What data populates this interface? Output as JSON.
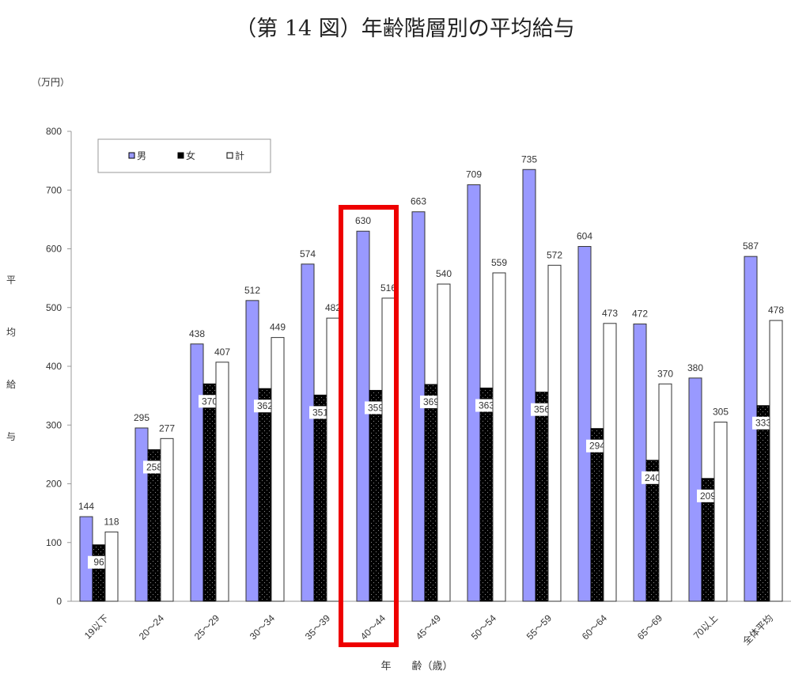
{
  "chart_data": {
    "type": "bar",
    "title": "（第 14 図）年齢階層別の平均給与",
    "unit": "（万円）",
    "ylabel": "平均給与",
    "xlabel": "年　齢（歳）",
    "ylim": [
      0,
      800
    ],
    "yticks": [
      0,
      100,
      200,
      300,
      400,
      500,
      600,
      700,
      800
    ],
    "categories": [
      "19以下",
      "20～24",
      "25～29",
      "30～34",
      "35～39",
      "40～44",
      "45～49",
      "50～54",
      "55～59",
      "60～64",
      "65～69",
      "70以上",
      "全体平均"
    ],
    "series": [
      {
        "name": "男",
        "color": "#9999ff",
        "values": [
          144,
          295,
          438,
          512,
          574,
          630,
          663,
          709,
          735,
          604,
          472,
          380,
          587
        ]
      },
      {
        "name": "女",
        "color": "#000000",
        "values": [
          96,
          258,
          370,
          362,
          351,
          359,
          369,
          363,
          356,
          294,
          240,
          209,
          333
        ]
      },
      {
        "name": "計",
        "color": "#ffffff",
        "values": [
          118,
          277,
          407,
          449,
          482,
          516,
          540,
          559,
          572,
          473,
          370,
          305,
          478
        ]
      }
    ],
    "legend": "top-left",
    "highlight": {
      "category": "40～44",
      "color": "#ee0000"
    }
  }
}
